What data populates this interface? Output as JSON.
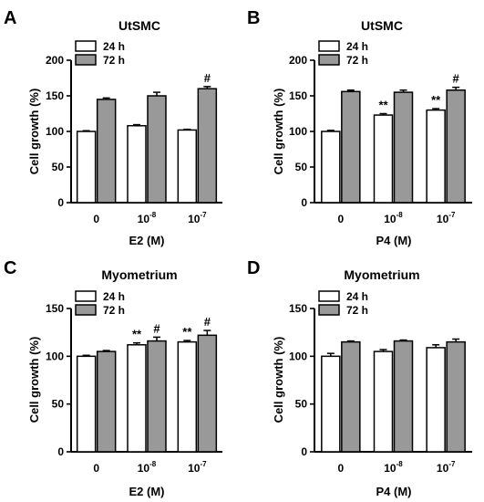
{
  "chart_data": [
    {
      "panel": "A",
      "type": "bar",
      "title": "UtSMC",
      "xlabel": "E2 (M)",
      "ylabel": "Cell growth  (%)",
      "ylim": [
        0,
        200
      ],
      "yticks": [
        0,
        50,
        100,
        150,
        200
      ],
      "categories": [
        {
          "base": "0",
          "exp": ""
        },
        {
          "base": "10",
          "exp": "-8"
        },
        {
          "base": "10",
          "exp": "-7"
        }
      ],
      "series": [
        {
          "name": "24 h",
          "color": "#ffffff",
          "values": [
            100,
            108,
            102
          ],
          "errors": [
            1,
            1.5,
            1
          ],
          "annotations": [
            "",
            "",
            ""
          ]
        },
        {
          "name": "72 h",
          "color": "#999999",
          "values": [
            145,
            150,
            160
          ],
          "errors": [
            2,
            5,
            3
          ],
          "annotations": [
            "",
            "",
            "#"
          ]
        }
      ],
      "legend_position": "top-left"
    },
    {
      "panel": "B",
      "type": "bar",
      "title": "UtSMC",
      "xlabel": "P4 (M)",
      "ylabel": "Cell growth  (%)",
      "ylim": [
        0,
        200
      ],
      "yticks": [
        0,
        50,
        100,
        150,
        200
      ],
      "categories": [
        {
          "base": "0",
          "exp": ""
        },
        {
          "base": "10",
          "exp": "-8"
        },
        {
          "base": "10",
          "exp": "-7"
        }
      ],
      "series": [
        {
          "name": "24 h",
          "color": "#ffffff",
          "values": [
            100,
            123,
            130
          ],
          "errors": [
            1.5,
            2,
            2
          ],
          "annotations": [
            "",
            "**",
            "**"
          ]
        },
        {
          "name": "72 h",
          "color": "#999999",
          "values": [
            156,
            155,
            158
          ],
          "errors": [
            2,
            3,
            4
          ],
          "annotations": [
            "",
            "",
            "#"
          ]
        }
      ],
      "legend_position": "top-left"
    },
    {
      "panel": "C",
      "type": "bar",
      "title": "Myometrium",
      "xlabel": "E2 (M)",
      "ylabel": "Cell growth  (%)",
      "ylim": [
        0,
        150
      ],
      "yticks": [
        0,
        50,
        100,
        150
      ],
      "categories": [
        {
          "base": "0",
          "exp": ""
        },
        {
          "base": "10",
          "exp": "-8"
        },
        {
          "base": "10",
          "exp": "-7"
        }
      ],
      "series": [
        {
          "name": "24 h",
          "color": "#ffffff",
          "values": [
            100,
            112,
            115
          ],
          "errors": [
            1,
            2,
            1.5
          ],
          "annotations": [
            "",
            "**",
            "**"
          ]
        },
        {
          "name": "72 h",
          "color": "#999999",
          "values": [
            105,
            116,
            122
          ],
          "errors": [
            1,
            4,
            5
          ],
          "annotations": [
            "",
            "#",
            "#"
          ]
        }
      ],
      "legend_position": "top-left"
    },
    {
      "panel": "D",
      "type": "bar",
      "title": "Myometrium",
      "xlabel": "P4 (M)",
      "ylabel": "Cell growth  (%)",
      "ylim": [
        0,
        150
      ],
      "yticks": [
        0,
        50,
        100,
        150
      ],
      "categories": [
        {
          "base": "0",
          "exp": ""
        },
        {
          "base": "10",
          "exp": "-8"
        },
        {
          "base": "10",
          "exp": "-7"
        }
      ],
      "series": [
        {
          "name": "24 h",
          "color": "#ffffff",
          "values": [
            100,
            105,
            109
          ],
          "errors": [
            3,
            2,
            3
          ],
          "annotations": [
            "",
            "",
            ""
          ]
        },
        {
          "name": "72 h",
          "color": "#999999",
          "values": [
            115,
            116,
            115
          ],
          "errors": [
            1,
            1,
            3
          ],
          "annotations": [
            "",
            "",
            ""
          ]
        }
      ],
      "legend_position": "top-left"
    }
  ]
}
